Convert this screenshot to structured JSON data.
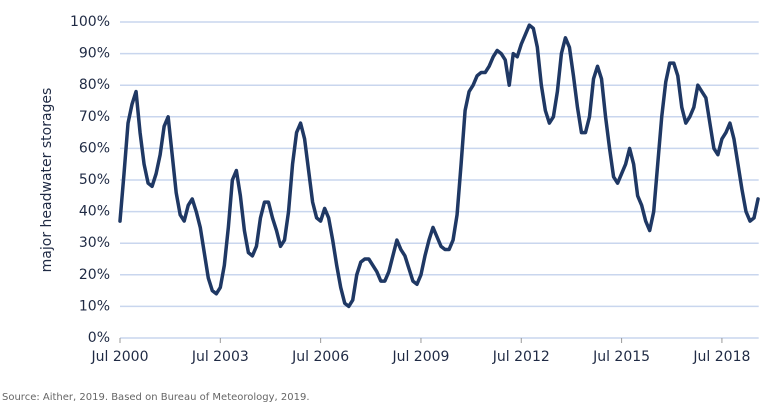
{
  "chart_data": {
    "type": "line",
    "y_label": "major headwater storages",
    "source": "Source: Aither, 2019. Based on Bureau of Meteorology, 2019.",
    "color": "#1f3864",
    "grid": true,
    "xlim": [
      2000.5,
      2019.6
    ],
    "ylim": [
      0,
      100
    ],
    "xticks": [
      {
        "value": 2000.5,
        "label": "Jul 2000"
      },
      {
        "value": 2003.5,
        "label": "Jul 2003"
      },
      {
        "value": 2006.5,
        "label": "Jul 2006"
      },
      {
        "value": 2009.5,
        "label": "Jul 2009"
      },
      {
        "value": 2012.5,
        "label": "Jul 2012"
      },
      {
        "value": 2015.5,
        "label": "Jul 2015"
      },
      {
        "value": 2018.5,
        "label": "Jul 2018"
      }
    ],
    "yticks": [
      {
        "value": 0,
        "label": "0%"
      },
      {
        "value": 10,
        "label": "10%"
      },
      {
        "value": 20,
        "label": "20%"
      },
      {
        "value": 30,
        "label": "30%"
      },
      {
        "value": 40,
        "label": "40%"
      },
      {
        "value": 50,
        "label": "50%"
      },
      {
        "value": 60,
        "label": "60%"
      },
      {
        "value": 70,
        "label": "70%"
      },
      {
        "value": 80,
        "label": "80%"
      },
      {
        "value": 90,
        "label": "90%"
      },
      {
        "value": 100,
        "label": "100%"
      }
    ],
    "x": [
      2000.5,
      2000.62,
      2000.74,
      2000.86,
      2000.98,
      2001.1,
      2001.22,
      2001.34,
      2001.46,
      2001.58,
      2001.7,
      2001.82,
      2001.94,
      2002.06,
      2002.18,
      2002.3,
      2002.42,
      2002.54,
      2002.66,
      2002.78,
      2002.9,
      2003.02,
      2003.14,
      2003.26,
      2003.38,
      2003.5,
      2003.62,
      2003.74,
      2003.86,
      2003.98,
      2004.1,
      2004.22,
      2004.34,
      2004.46,
      2004.58,
      2004.7,
      2004.82,
      2004.94,
      2005.06,
      2005.18,
      2005.3,
      2005.42,
      2005.54,
      2005.66,
      2005.78,
      2005.9,
      2006.02,
      2006.14,
      2006.26,
      2006.38,
      2006.5,
      2006.62,
      2006.74,
      2006.86,
      2006.98,
      2007.1,
      2007.22,
      2007.34,
      2007.46,
      2007.58,
      2007.7,
      2007.82,
      2007.94,
      2008.06,
      2008.18,
      2008.3,
      2008.42,
      2008.54,
      2008.66,
      2008.78,
      2008.9,
      2009.02,
      2009.14,
      2009.26,
      2009.38,
      2009.5,
      2009.62,
      2009.74,
      2009.86,
      2009.98,
      2010.1,
      2010.22,
      2010.34,
      2010.46,
      2010.58,
      2010.7,
      2010.82,
      2010.94,
      2011.06,
      2011.18,
      2011.3,
      2011.42,
      2011.54,
      2011.66,
      2011.78,
      2011.9,
      2012.02,
      2012.14,
      2012.26,
      2012.38,
      2012.5,
      2012.62,
      2012.74,
      2012.86,
      2012.98,
      2013.1,
      2013.22,
      2013.34,
      2013.46,
      2013.58,
      2013.7,
      2013.82,
      2013.94,
      2014.06,
      2014.18,
      2014.3,
      2014.42,
      2014.54,
      2014.66,
      2014.78,
      2014.9,
      2015.02,
      2015.14,
      2015.26,
      2015.38,
      2015.5,
      2015.62,
      2015.74,
      2015.86,
      2015.98,
      2016.1,
      2016.22,
      2016.34,
      2016.46,
      2016.58,
      2016.7,
      2016.82,
      2016.94,
      2017.06,
      2017.18,
      2017.3,
      2017.42,
      2017.54,
      2017.66,
      2017.78,
      2017.9,
      2018.02,
      2018.14,
      2018.26,
      2018.38,
      2018.5,
      2018.62,
      2018.74,
      2018.86,
      2018.98,
      2019.1,
      2019.22,
      2019.34,
      2019.46,
      2019.58
    ],
    "values": [
      37,
      52,
      68,
      74,
      78,
      65,
      55,
      49,
      48,
      52,
      58,
      67,
      70,
      58,
      46,
      39,
      37,
      42,
      44,
      40,
      35,
      27,
      19,
      15,
      14,
      16,
      23,
      35,
      50,
      53,
      45,
      34,
      27,
      26,
      29,
      38,
      43,
      43,
      38,
      34,
      29,
      31,
      40,
      55,
      65,
      68,
      63,
      53,
      43,
      38,
      37,
      41,
      38,
      31,
      23,
      16,
      11,
      10,
      12,
      20,
      24,
      25,
      25,
      23,
      21,
      18,
      18,
      21,
      26,
      31,
      28,
      26,
      22,
      18,
      17,
      20,
      26,
      31,
      35,
      32,
      29,
      28,
      28,
      31,
      39,
      55,
      72,
      78,
      80,
      83,
      84,
      84,
      86,
      89,
      91,
      90,
      88,
      80,
      90,
      89,
      93,
      96,
      99,
      98,
      92,
      80,
      72,
      68,
      70,
      78,
      90,
      95,
      92,
      83,
      73,
      65,
      65,
      70,
      82,
      86,
      82,
      70,
      60,
      51,
      49,
      52,
      55,
      60,
      55,
      45,
      42,
      37,
      34,
      40,
      55,
      70,
      81,
      87,
      87,
      83,
      73,
      68,
      70,
      73,
      80,
      78,
      76,
      68,
      60,
      58,
      63,
      65,
      68,
      63,
      55,
      47,
      40,
      37,
      38,
      44
    ]
  }
}
